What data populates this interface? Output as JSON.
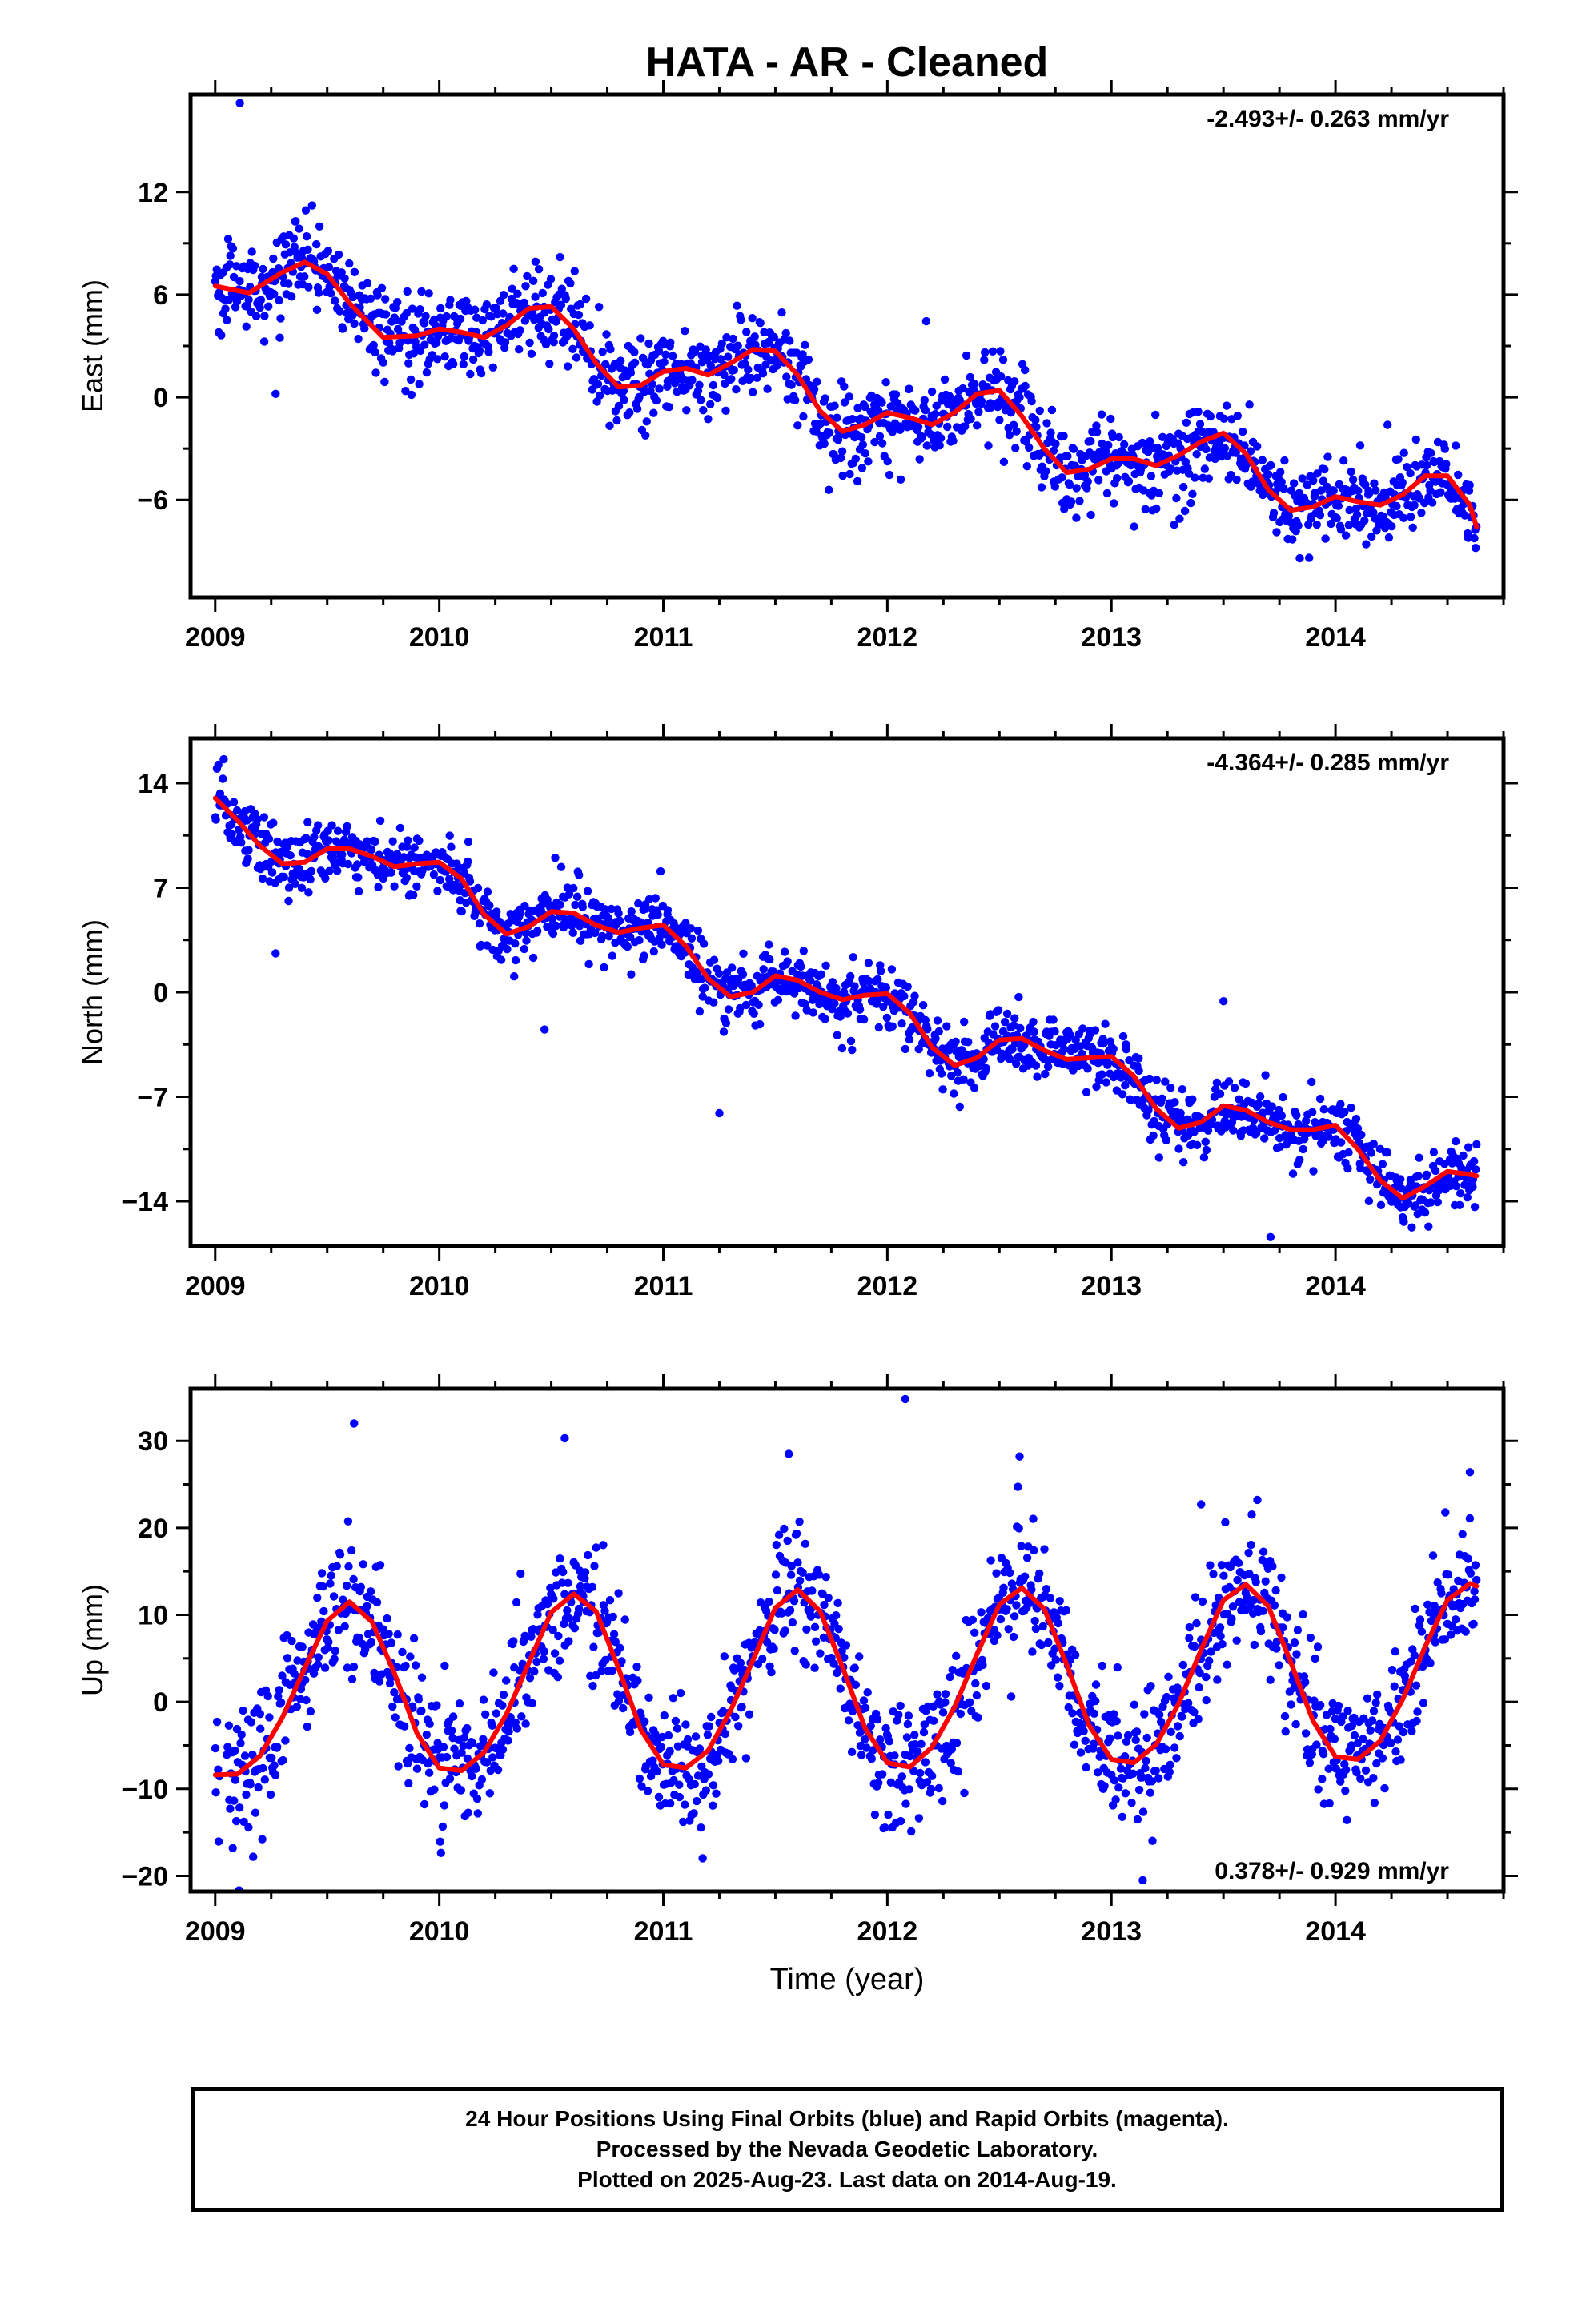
{
  "title": "HATA  - AR - Cleaned",
  "colors": {
    "data": "#0000ff",
    "fit": "#ff0000",
    "frame": "#000000"
  },
  "footer": {
    "line1": "24 Hour Positions Using Final Orbits (blue) and Rapid Orbits (magenta).",
    "line2": "Processed by the Nevada Geodetic Laboratory.",
    "line3": "Plotted on 2025-Aug-23. Last data on 2014-Aug-19."
  },
  "chart_data": [
    {
      "type": "scatter",
      "panel": "east",
      "ylabel": "East (mm)",
      "xlabel": "",
      "rate_text": "-2.493+/- 0.263 mm/yr",
      "rate_position": "top-right",
      "xlim": [
        2008.89,
        2014.75
      ],
      "ylim": [
        -11.7,
        17.7
      ],
      "yticks": [
        -6,
        0,
        6,
        12
      ],
      "xticks": [
        2009,
        2010,
        2011,
        2012,
        2013,
        2014
      ],
      "model": {
        "rate": -2.493,
        "amp": 1.6,
        "tpeak": 0.42,
        "amp2": 0.35,
        "tpeak2": 0.2,
        "noise": 1.25,
        "offset": 6.55,
        "t0": 2009.0
      },
      "fit_curve": {
        "x": [
          2009.0,
          2009.15,
          2009.3,
          2009.4,
          2009.5,
          2009.6,
          2009.75,
          2009.9,
          2010.0,
          2010.1,
          2010.2,
          2010.3,
          2010.4,
          2010.5,
          2010.6,
          2010.7,
          2010.8,
          2010.9,
          2011.0,
          2011.1,
          2011.2,
          2011.3,
          2011.4,
          2011.5,
          2011.6,
          2011.7,
          2011.8,
          2011.9,
          2012.0,
          2012.1,
          2012.2,
          2012.3,
          2012.4,
          2012.5,
          2012.6,
          2012.7,
          2012.8,
          2012.9,
          2013.0,
          2013.1,
          2013.2,
          2013.3,
          2013.4,
          2013.5,
          2013.6,
          2013.7,
          2013.8,
          2013.9,
          2014.0,
          2014.1,
          2014.2,
          2014.3,
          2014.4,
          2014.5,
          2014.6,
          2014.63
        ],
        "y": [
          6.5,
          6.1,
          7.3,
          7.9,
          7.2,
          5.5,
          3.5,
          3.6,
          4.0,
          3.8,
          3.5,
          4.2,
          5.2,
          5.3,
          4.0,
          2.0,
          0.6,
          0.7,
          1.5,
          1.7,
          1.3,
          2.0,
          2.8,
          2.7,
          1.3,
          -0.8,
          -2.0,
          -1.6,
          -0.9,
          -1.2,
          -1.6,
          -0.9,
          0.2,
          0.4,
          -1.1,
          -3.0,
          -4.4,
          -4.2,
          -3.6,
          -3.6,
          -4.0,
          -3.4,
          -2.6,
          -2.1,
          -3.3,
          -5.4,
          -6.6,
          -6.4,
          -5.8,
          -6.1,
          -6.3,
          -5.7,
          -4.6,
          -4.6,
          -6.3,
          -7.6
        ]
      },
      "outliers": {
        "x": [
          2009.11,
          2009.27
        ],
        "y": [
          17.2,
          0.2
        ]
      }
    },
    {
      "type": "scatter",
      "panel": "north",
      "ylabel": "North (mm)",
      "xlabel": "",
      "rate_text": "-4.364+/- 0.285 mm/yr",
      "rate_position": "top-right",
      "xlim": [
        2008.89,
        2014.75
      ],
      "ylim": [
        -17.0,
        17.0
      ],
      "yticks": [
        -14,
        -7,
        0,
        7,
        14
      ],
      "xticks": [
        2009,
        2010,
        2011,
        2012,
        2013,
        2014
      ],
      "model": {
        "rate": -4.364,
        "amp": 1.4,
        "tpeak": 0.55,
        "amp2": 0.6,
        "tpeak2": 0.05,
        "noise": 1.1,
        "offset": 12.9,
        "t0": 2009.0
      },
      "fit_curve": {
        "x": [
          2009.0,
          2009.1,
          2009.2,
          2009.3,
          2009.4,
          2009.5,
          2009.6,
          2009.7,
          2009.8,
          2009.9,
          2010.0,
          2010.1,
          2010.2,
          2010.3,
          2010.4,
          2010.5,
          2010.6,
          2010.7,
          2010.8,
          2010.9,
          2011.0,
          2011.1,
          2011.2,
          2011.3,
          2011.4,
          2011.5,
          2011.6,
          2011.7,
          2011.8,
          2011.9,
          2012.0,
          2012.1,
          2012.2,
          2012.3,
          2012.4,
          2012.5,
          2012.6,
          2012.7,
          2012.8,
          2012.9,
          2013.0,
          2013.1,
          2013.2,
          2013.3,
          2013.4,
          2013.5,
          2013.6,
          2013.7,
          2013.8,
          2013.9,
          2014.0,
          2014.1,
          2014.2,
          2014.3,
          2014.4,
          2014.5,
          2014.6,
          2014.63
        ],
        "y": [
          13.0,
          11.5,
          9.8,
          8.6,
          8.7,
          9.6,
          9.6,
          9.1,
          8.4,
          8.6,
          8.7,
          7.6,
          5.2,
          3.9,
          4.4,
          5.4,
          5.3,
          4.5,
          4.0,
          4.3,
          4.5,
          3.1,
          0.9,
          -0.3,
          0.0,
          1.1,
          0.8,
          0.0,
          -0.5,
          -0.2,
          -0.1,
          -1.4,
          -3.7,
          -4.9,
          -4.4,
          -3.2,
          -3.1,
          -3.9,
          -4.5,
          -4.4,
          -4.3,
          -5.6,
          -7.8,
          -9.1,
          -8.7,
          -7.6,
          -7.9,
          -8.7,
          -9.2,
          -9.2,
          -8.9,
          -10.5,
          -12.6,
          -13.8,
          -13.0,
          -12.0,
          -12.2,
          -12.3
        ]
      },
      "outliers": {
        "x": [
          2009.27,
          2010.47,
          2011.25,
          2013.5,
          2013.71
        ],
        "y": [
          2.6,
          -2.5,
          -8.1,
          -0.6,
          -16.4
        ]
      }
    },
    {
      "type": "scatter",
      "panel": "up",
      "ylabel": "Up (mm)",
      "xlabel": "Time (year)",
      "rate_text": "0.378+/- 0.929 mm/yr",
      "rate_position": "bottom-right",
      "xlim": [
        2008.89,
        2014.75
      ],
      "ylim": [
        -21.8,
        36.0
      ],
      "yticks": [
        -20,
        -10,
        0,
        10,
        20,
        30
      ],
      "xticks": [
        2009,
        2010,
        2011,
        2012,
        2013,
        2014
      ],
      "model": {
        "rate": 0.378,
        "amp": 10.0,
        "tpeak": 0.58,
        "amp2": 1.0,
        "tpeak2": 0.3,
        "noise": 3.8,
        "offset": 1.8,
        "t0": 2009.0
      },
      "fit_curve": {
        "x": [
          2009.0,
          2009.1,
          2009.2,
          2009.3,
          2009.4,
          2009.5,
          2009.6,
          2009.7,
          2009.8,
          2009.9,
          2010.0,
          2010.1,
          2010.2,
          2010.3,
          2010.4,
          2010.5,
          2010.6,
          2010.7,
          2010.8,
          2010.9,
          2011.0,
          2011.1,
          2011.2,
          2011.3,
          2011.4,
          2011.5,
          2011.6,
          2011.7,
          2011.8,
          2011.9,
          2012.0,
          2012.1,
          2012.2,
          2012.3,
          2012.4,
          2012.5,
          2012.6,
          2012.7,
          2012.8,
          2012.9,
          2013.0,
          2013.1,
          2013.2,
          2013.3,
          2013.4,
          2013.5,
          2013.6,
          2013.7,
          2013.8,
          2013.9,
          2014.0,
          2014.1,
          2014.2,
          2014.3,
          2014.4,
          2014.5,
          2014.6,
          2014.63
        ],
        "y": [
          -8.4,
          -8.3,
          -6.2,
          -1.8,
          3.9,
          9.3,
          11.5,
          9.2,
          3.3,
          -3.6,
          -7.6,
          -7.9,
          -5.8,
          -1.4,
          4.5,
          10.3,
          12.4,
          10.4,
          3.9,
          -3.2,
          -7.2,
          -7.6,
          -5.6,
          -1.0,
          4.8,
          10.8,
          12.9,
          10.4,
          4.0,
          -3.0,
          -7.0,
          -7.5,
          -5.2,
          -0.6,
          5.5,
          11.2,
          13.1,
          10.7,
          4.3,
          -2.7,
          -6.6,
          -7.0,
          -4.9,
          -0.2,
          6.0,
          11.7,
          13.5,
          11.0,
          4.6,
          -2.2,
          -6.3,
          -6.6,
          -4.5,
          0.3,
          6.3,
          11.7,
          13.6,
          13.3
        ]
      },
      "outliers": {
        "x": [
          2009.62,
          2010.56,
          2011.56,
          2012.08,
          2012.59,
          2013.14,
          2013.4,
          2014.6
        ],
        "y": [
          32.0,
          30.3,
          28.5,
          34.8,
          28.2,
          -20.5,
          22.7,
          26.4
        ]
      }
    }
  ]
}
